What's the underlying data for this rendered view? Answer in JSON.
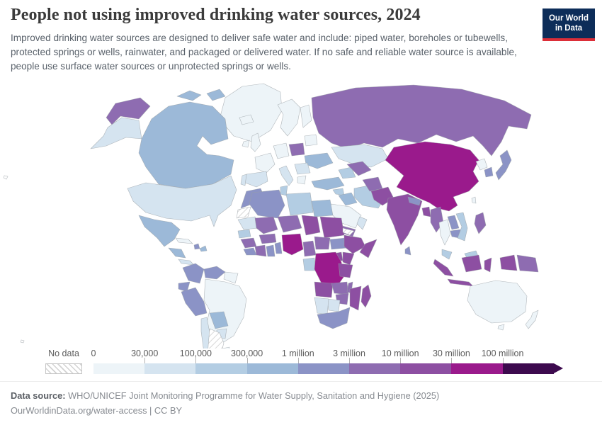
{
  "header": {
    "title": "People not using improved drinking water sources, 2024",
    "subtitle": "Improved drinking water sources are designed to deliver safe water and include: piped water, boreholes or tubewells, protected springs or wells, rainwater, and packaged or delivered water. If no safe and reliable water source is available, people use surface water sources or unprotected springs or wells."
  },
  "logo": {
    "line1": "Our World",
    "line2": "in Data",
    "bg": "#0d2d59",
    "accent": "#dc2e38"
  },
  "legend": {
    "no_data_label": "No data"
  },
  "footer": {
    "source_label": "Data source:",
    "source_text": " WHO/UNICEF Joint Monitoring Programme for Water Supply, Sanitation and Hygiene (2025)",
    "link_line": "OurWorldinData.org/water-access | CC BY"
  },
  "chart_data": {
    "type": "choropleth-map",
    "title": "People not using improved drinking water sources, 2024",
    "year": "2024",
    "legend_position": "bottom",
    "bin_labels": [
      "0",
      "30,000",
      "100,000",
      "300,000",
      "1 million",
      "3 million",
      "10 million",
      "30 million",
      "100 million"
    ],
    "bin_colors": [
      "#edf4f8",
      "#d5e4f0",
      "#b3cde3",
      "#9cb9d8",
      "#8b93c6",
      "#8e6cb1",
      "#8d4fa2",
      "#9a1a8c",
      "#3d0a4e"
    ],
    "no_data_fill": "hatch",
    "countries": {
      "russia": 5,
      "canada": 3,
      "greenland": 0,
      "united_states": 1,
      "mexico": 3,
      "cuba": 0,
      "haiti": 4,
      "dominican_republic": 3,
      "guatemala": 3,
      "panama": 1,
      "colombia": 4,
      "venezuela": 4,
      "guyana": 0,
      "ecuador": 4,
      "peru": 4,
      "brazil": 0,
      "bolivia": 3,
      "paraguay": 1,
      "uruguay": 0,
      "chile": 1,
      "argentina": "no_data",
      "iceland": 0,
      "ireland": 0,
      "united_kingdom": 0,
      "sweden": 0,
      "finland": 0,
      "france": 0,
      "spain": 1,
      "portugal": 1,
      "germany": 0,
      "italy": 1,
      "poland": 5,
      "belarus": 0,
      "ukraine": 3,
      "romania": 1,
      "greece": 0,
      "turkey": 3,
      "syria": 2,
      "iraq": 3,
      "iran": 2,
      "saudi_arabia": 0,
      "yemen": 5,
      "oman": 1,
      "egypt": 3,
      "kazakhstan": 1,
      "mongolia": 2,
      "uzbekistan": 5,
      "turkmenistan": 2,
      "afghanistan": 5,
      "pakistan": 6,
      "morocco": 4,
      "western_sahara": "no_data",
      "algeria": 4,
      "tunisia": 2,
      "libya": 2,
      "mauritania": 1,
      "mali": 5,
      "niger": 5,
      "chad": 6,
      "sudan": 6,
      "eritrea": "no_data",
      "senegal": 2,
      "guinea": 5,
      "sierra_leone": 4,
      "cote_divoire": 5,
      "ghana": 4,
      "burkina_faso": 5,
      "benin": 4,
      "nigeria": 7,
      "cameroon": 5,
      "central_african_republic": 5,
      "south_sudan": 4,
      "ethiopia": 6,
      "somalia": 6,
      "uganda": 6,
      "kenya": 6,
      "democratic_republic_of_congo": 7,
      "congo": 0,
      "gabon": 2,
      "tanzania": 6,
      "angola": 6,
      "zambia": 5,
      "malawi": 5,
      "mozambique": 6,
      "zimbabwe": 5,
      "botswana": 1,
      "namibia": 1,
      "south_africa": 4,
      "madagascar": 6,
      "india": 6,
      "nepal": 4,
      "bangladesh": 6,
      "sri_lanka": 4,
      "myanmar": 5,
      "thailand": 0,
      "laos": 4,
      "cambodia": 4,
      "vietnam": 2,
      "malaysia": 2,
      "china": 7,
      "north_korea": 0,
      "south_korea": 4,
      "japan": 4,
      "taiwan": 0,
      "philippines": 5,
      "indonesia": 6,
      "papua_new_guinea": 5,
      "australia": 0,
      "new_zealand": 0
    }
  }
}
